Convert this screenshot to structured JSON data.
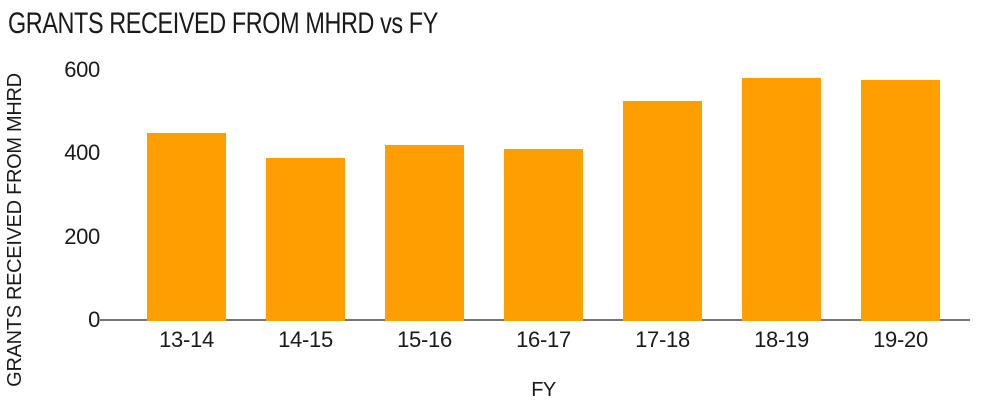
{
  "chart_data": {
    "type": "bar",
    "title": "GRANTS RECEIVED FROM MHRD vs FY",
    "xlabel": "FY",
    "ylabel": "GRANTS RECEIVED FROM MHRD",
    "categories": [
      "13-14",
      "14-15",
      "15-16",
      "16-17",
      "17-18",
      "18-19",
      "19-20"
    ],
    "values": [
      450,
      390,
      420,
      410,
      525,
      580,
      575
    ],
    "ylim": [
      0,
      600
    ],
    "yticks": [
      0,
      200,
      400,
      600
    ],
    "grid": false,
    "legend": false,
    "bar_color": "#FF9E01",
    "axis_line_color": "#757575",
    "text_color": "#1A1A1A"
  }
}
